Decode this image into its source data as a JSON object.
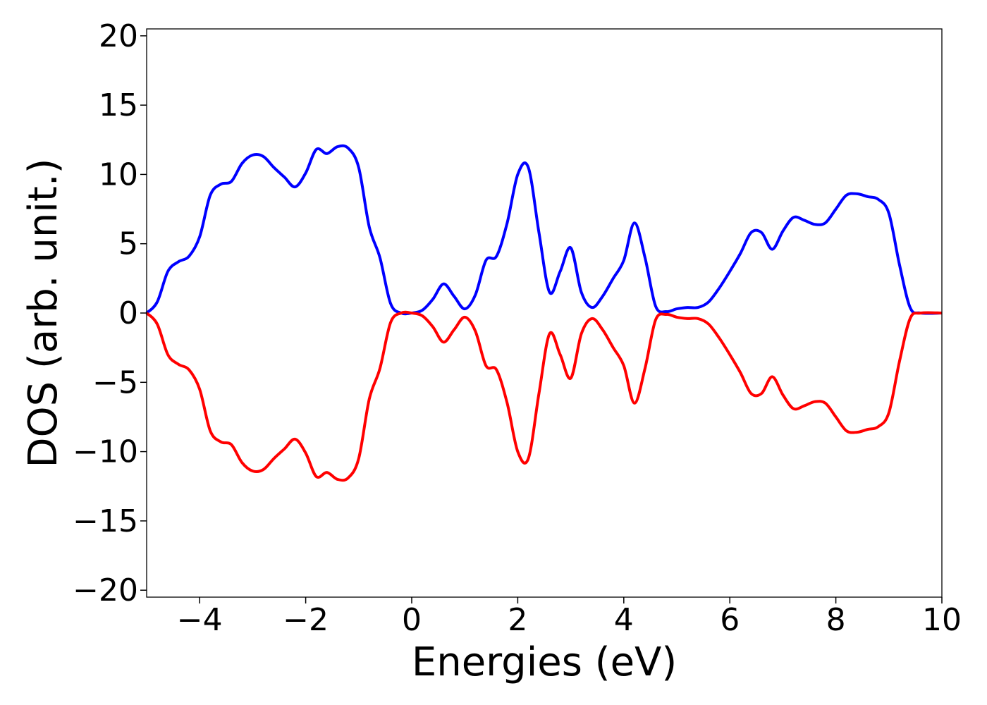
{
  "chart_data": {
    "type": "line",
    "title": "",
    "xlabel": "Energies (eV)",
    "ylabel": "DOS (arb. unit.)",
    "xlim": [
      -5,
      10
    ],
    "ylim": [
      -20.5,
      20.5
    ],
    "grid": false,
    "x_ticks": [
      -4,
      -2,
      0,
      2,
      4,
      6,
      8,
      10
    ],
    "x_tick_labels": [
      "−4",
      "−2",
      "0",
      "2",
      "4",
      "6",
      "8",
      "10"
    ],
    "y_ticks": [
      20,
      15,
      10,
      5,
      0,
      -5,
      -10,
      -15,
      -20
    ],
    "y_tick_labels": [
      "20",
      "15",
      "10",
      "5",
      "0",
      "−5",
      "−10",
      "−15",
      "−20"
    ],
    "x": [
      -5.0,
      -4.8,
      -4.6,
      -4.4,
      -4.2,
      -4.0,
      -3.8,
      -3.6,
      -3.4,
      -3.2,
      -3.0,
      -2.8,
      -2.6,
      -2.4,
      -2.2,
      -2.0,
      -1.8,
      -1.6,
      -1.4,
      -1.2,
      -1.0,
      -0.8,
      -0.6,
      -0.4,
      -0.2,
      0.0,
      0.2,
      0.4,
      0.6,
      0.8,
      1.0,
      1.2,
      1.4,
      1.6,
      1.8,
      2.0,
      2.2,
      2.4,
      2.6,
      2.8,
      3.0,
      3.2,
      3.4,
      3.6,
      3.8,
      4.0,
      4.2,
      4.4,
      4.6,
      4.8,
      5.0,
      5.2,
      5.4,
      5.6,
      5.8,
      6.0,
      6.2,
      6.4,
      6.6,
      6.8,
      7.0,
      7.2,
      7.4,
      7.6,
      7.8,
      8.0,
      8.2,
      8.4,
      8.6,
      8.8,
      9.0,
      9.2,
      9.4,
      9.6,
      10.0
    ],
    "series": [
      {
        "color": "#0000ff",
        "values": [
          0.0,
          0.8,
          3.0,
          3.7,
          4.1,
          5.5,
          8.5,
          9.3,
          9.5,
          10.8,
          11.4,
          11.3,
          10.5,
          9.8,
          9.1,
          10.1,
          11.8,
          11.5,
          12.0,
          11.9,
          10.5,
          6.2,
          4.0,
          0.7,
          0.0,
          0.0,
          0.2,
          1.0,
          2.1,
          1.2,
          0.3,
          1.3,
          3.8,
          4.1,
          6.5,
          10.0,
          10.5,
          5.8,
          1.5,
          3.0,
          4.7,
          1.5,
          0.4,
          1.2,
          2.5,
          3.8,
          6.5,
          4.0,
          0.5,
          0.1,
          0.3,
          0.4,
          0.4,
          0.8,
          1.8,
          3.0,
          4.3,
          5.8,
          5.8,
          4.6,
          5.9,
          6.9,
          6.7,
          6.4,
          6.5,
          7.5,
          8.5,
          8.6,
          8.4,
          8.2,
          7.2,
          3.5,
          0.4,
          0.0,
          0.0
        ]
      },
      {
        "color": "#ff0000",
        "values": [
          0.0,
          -0.8,
          -3.0,
          -3.7,
          -4.1,
          -5.5,
          -8.5,
          -9.3,
          -9.5,
          -10.8,
          -11.4,
          -11.3,
          -10.5,
          -9.8,
          -9.1,
          -10.1,
          -11.8,
          -11.5,
          -12.0,
          -11.9,
          -10.5,
          -6.2,
          -4.0,
          -0.7,
          0.0,
          0.0,
          -0.2,
          -1.0,
          -2.1,
          -1.2,
          -0.3,
          -1.3,
          -3.8,
          -4.1,
          -6.5,
          -10.0,
          -10.5,
          -5.8,
          -1.5,
          -3.0,
          -4.7,
          -1.5,
          -0.4,
          -1.2,
          -2.5,
          -3.8,
          -6.5,
          -4.0,
          -0.5,
          -0.1,
          -0.3,
          -0.4,
          -0.4,
          -0.8,
          -1.8,
          -3.0,
          -4.3,
          -5.8,
          -5.8,
          -4.6,
          -5.9,
          -6.9,
          -6.7,
          -6.4,
          -6.5,
          -7.5,
          -8.5,
          -8.6,
          -8.4,
          -8.2,
          -7.2,
          -3.5,
          -0.4,
          0.0,
          0.0
        ]
      }
    ]
  }
}
